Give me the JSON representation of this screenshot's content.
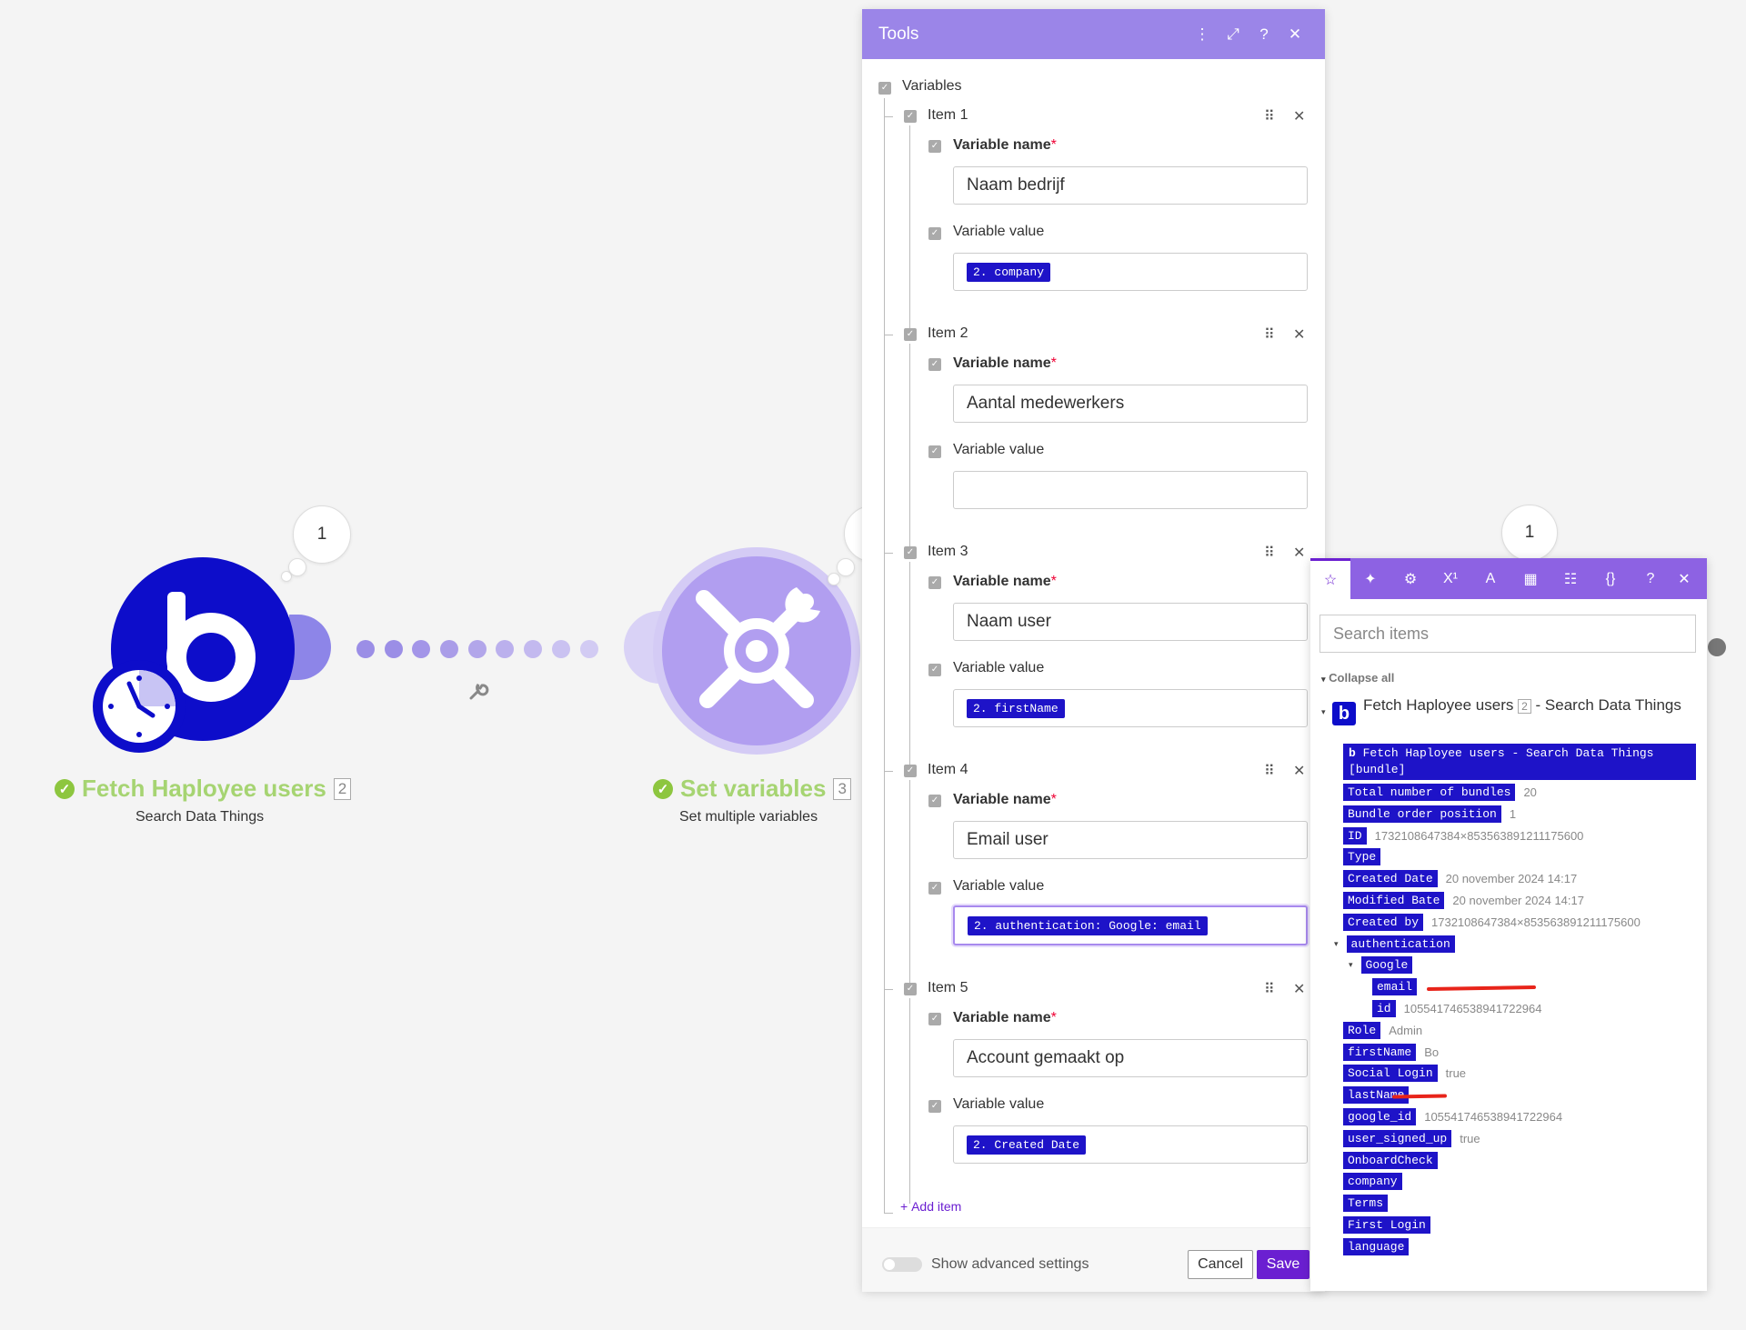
{
  "modules": [
    {
      "name": "Fetch Haployee users",
      "count": "2",
      "subtitle": "Search Data Things",
      "bubble": "1",
      "icon": "bubble-logo-icon",
      "color": "#0d0dca"
    },
    {
      "name": "Set variables",
      "count": "3",
      "subtitle": "Set multiple variables",
      "icon": "tools-icon",
      "color": "#b19ef0"
    }
  ],
  "right_bubble": "1",
  "tools": {
    "title": "Tools",
    "section": "Variables",
    "items": [
      {
        "label": "Item 1",
        "name_label": "Variable name",
        "name_value": "Naam bedrijf",
        "value_label": "Variable value",
        "value_pill": "2. company"
      },
      {
        "label": "Item 2",
        "name_label": "Variable name",
        "name_value": "Aantal medewerkers",
        "value_label": "Variable value",
        "value_pill": ""
      },
      {
        "label": "Item 3",
        "name_label": "Variable name",
        "name_value": "Naam user",
        "value_label": "Variable value",
        "value_pill": "2. firstName"
      },
      {
        "label": "Item 4",
        "name_label": "Variable name",
        "name_value": "Email user",
        "value_label": "Variable value",
        "value_pill": "2. authentication: Google: email"
      },
      {
        "label": "Item 5",
        "name_label": "Variable name",
        "name_value": "Account gemaakt op",
        "value_label": "Variable value",
        "value_pill": "2. Created Date"
      }
    ],
    "required_mark": "*",
    "add_item": "Add item",
    "advanced": "Show advanced settings",
    "cancel": "Cancel",
    "save": "Save"
  },
  "mapper": {
    "search_placeholder": "Search items",
    "collapse_all": "Collapse all",
    "source_title": "Fetch Haployee users",
    "source_count": "2",
    "source_suffix": "- Search Data Things",
    "bundle_label": "Fetch Haployee users - Search Data Things [bundle]",
    "rows": [
      {
        "key": "Total number of bundles",
        "value": "20",
        "indent": 0
      },
      {
        "key": "Bundle order position",
        "value": "1",
        "indent": 0
      },
      {
        "key": "ID",
        "value": "1732108647384×853563891211175600",
        "indent": 0
      },
      {
        "key": "Type",
        "value": "",
        "indent": 0
      },
      {
        "key": "Created Date",
        "value": "20 november 2024 14:17",
        "indent": 0
      },
      {
        "key": "Modified Bate",
        "value": "20 november 2024 14:17",
        "indent": 0
      },
      {
        "key": "Created by",
        "value": "1732108647384×853563891211175600",
        "indent": 0
      },
      {
        "key": "authentication",
        "value": "",
        "indent": 0,
        "caret": true
      },
      {
        "key": "Google",
        "value": "",
        "indent": 1,
        "caret": true
      },
      {
        "key": "email",
        "value": "",
        "indent": 2,
        "redacted": true
      },
      {
        "key": "id",
        "value": "105541746538941722964",
        "indent": 2
      },
      {
        "key": "Role",
        "value": "Admin",
        "indent": 0
      },
      {
        "key": "firstName",
        "value": "Bo",
        "indent": 0
      },
      {
        "key": "Social Login",
        "value": "true",
        "indent": 0
      },
      {
        "key": "lastName",
        "value": "",
        "indent": 0,
        "redacted": true
      },
      {
        "key": "google_id",
        "value": "105541746538941722964",
        "indent": 0
      },
      {
        "key": "user_signed_up",
        "value": "true",
        "indent": 0
      },
      {
        "key": "OnboardCheck",
        "value": "",
        "indent": 0
      },
      {
        "key": "company",
        "value": "",
        "indent": 0
      },
      {
        "key": "Terms",
        "value": "",
        "indent": 0
      },
      {
        "key": "First Login",
        "value": "",
        "indent": 0
      },
      {
        "key": "language",
        "value": "",
        "indent": 0
      }
    ]
  },
  "colors": {
    "accent": "#6b1fd1",
    "pill": "#1e13c8",
    "header": "#9b85e8",
    "success": "#8dc63f",
    "module_name": "#a6d472"
  }
}
